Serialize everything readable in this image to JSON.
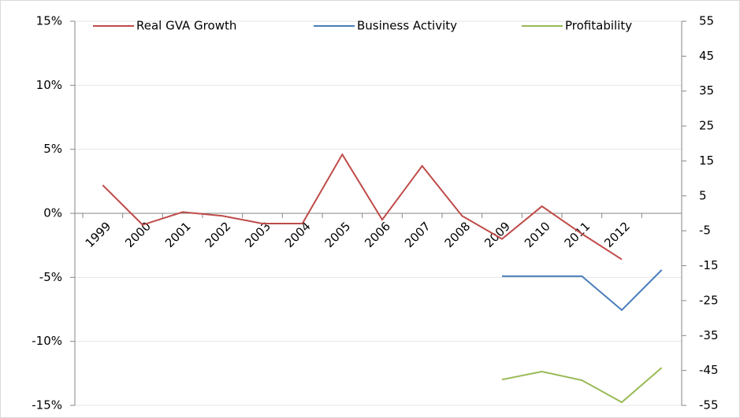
{
  "chart_data": {
    "type": "line",
    "categories": [
      "1999",
      "2000",
      "2001",
      "2002",
      "2003",
      "2004",
      "2005",
      "2006",
      "2007",
      "2008",
      "2009",
      "2010",
      "2011",
      "2012",
      null
    ],
    "series": [
      {
        "name": "Real GVA Growth",
        "color": "#be4b48",
        "values": [
          2.2,
          -0.9,
          0.1,
          -0.2,
          -0.8,
          -0.8,
          4.6,
          -0.5,
          3.7,
          -0.2,
          -2.0,
          0.55,
          -1.6,
          -3.6,
          null
        ]
      },
      {
        "name": "Business Activity",
        "color": "#4a7ebb",
        "axis": "y2",
        "values": [
          null,
          null,
          null,
          null,
          null,
          null,
          null,
          null,
          null,
          null,
          -18,
          -18,
          -18,
          -27.7,
          -16.2
        ]
      },
      {
        "name": "Profitability",
        "color": "#98b954",
        "axis": "y2",
        "values": [
          null,
          null,
          null,
          null,
          null,
          null,
          null,
          null,
          null,
          null,
          -47.6,
          -45.3,
          -47.8,
          -54.1,
          -44.2
        ]
      }
    ],
    "ylim": [
      -15,
      15
    ],
    "yticks": [
      {
        "value": -15,
        "label": "-15%"
      },
      {
        "value": -10,
        "label": "-10%"
      },
      {
        "value": -5,
        "label": "-5%"
      },
      {
        "value": 0,
        "label": "0%"
      },
      {
        "value": 5,
        "label": "5%"
      },
      {
        "value": 10,
        "label": "10%"
      },
      {
        "value": 15,
        "label": "15%"
      }
    ],
    "y2lim": [
      -55,
      55
    ],
    "y2ticks": [
      -55,
      -45,
      -35,
      -25,
      -15,
      -5,
      5,
      15,
      25,
      35,
      45,
      55
    ],
    "grid": true
  }
}
